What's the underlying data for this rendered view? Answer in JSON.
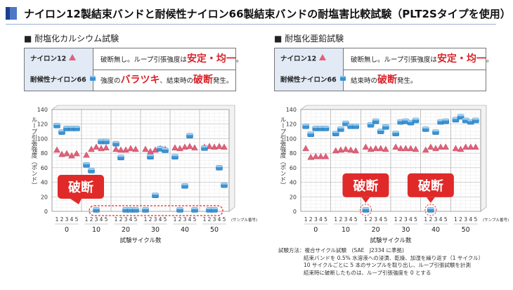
{
  "header": {
    "title": "ナイロン12製結束バンドと耐候性ナイロン66製結束バンドの耐塩害比較試験（PLT2Sタイプを使用）",
    "accent": "#1a3f8f"
  },
  "panels": [
    {
      "title": "■ 耐塩化カルシウム試験",
      "legend": [
        {
          "name": "ナイロン12",
          "symbol": "pink-triangle",
          "desc_parts": [
            "破断無し。ループ引張強度は",
            "安定・均一",
            "。"
          ]
        },
        {
          "name": "耐候性ナイロン66",
          "symbol": "blue-cube",
          "desc_parts": [
            "強度の",
            "バラツキ",
            "、結束時の",
            "破断",
            "発生。"
          ]
        }
      ],
      "break_label": "破断"
    },
    {
      "title": "■ 耐塩化亜鉛試験",
      "legend": [
        {
          "name": "ナイロン12",
          "symbol": "pink-triangle",
          "desc_parts": [
            "破断無し。ループ引張強度は",
            "安定・均一",
            "。"
          ]
        },
        {
          "name": "耐候性ナイロン66",
          "symbol": "blue-cube",
          "desc_parts": [
            "結束時の",
            "破断",
            "発生。"
          ]
        }
      ],
      "break_label": "破断"
    }
  ],
  "chart_data": [
    {
      "type": "scatter",
      "title": "",
      "ylabel": "ループ引張強度（ポンド）",
      "xlabel": "試験サイクル数",
      "ylim": [
        0,
        140
      ],
      "yticks": [
        0,
        20,
        40,
        60,
        80,
        100,
        120,
        140
      ],
      "groups": [
        "0",
        "10",
        "20",
        "30",
        "40",
        "50"
      ],
      "sample_labels": [
        "1",
        "2",
        "3",
        "4",
        "5"
      ],
      "sample_note": "(サンプル番号)",
      "grid": true,
      "series": [
        {
          "name": "ナイロン12",
          "marker": "triangle",
          "color": "#e0607a",
          "values": [
            [
              84,
              78,
              79,
              76,
              79
            ],
            [
              77,
              85,
              88,
              86,
              87
            ],
            [
              85,
              84,
              84,
              86,
              85
            ],
            [
              85,
              82,
              84,
              86,
              85
            ],
            [
              87,
              86,
              88,
              89,
              87
            ],
            [
              88,
              89,
              88,
              89,
              88
            ]
          ]
        },
        {
          "name": "耐候性ナイロン66",
          "marker": "cube",
          "color": "#3a93d4",
          "values": [
            [
              118,
              109,
              114,
              114,
              114
            ],
            [
              64,
              56,
              2,
              96,
              96
            ],
            [
              93,
              74,
              2,
              2,
              2
            ],
            [
              2,
              75,
              22,
              86,
              84
            ],
            [
              75,
              2,
              35,
              104,
              2
            ],
            [
              87,
              2,
              2,
              60,
              36
            ]
          ]
        }
      ],
      "annotation": {
        "text": "破断",
        "note": "values at 0 = broken at binding"
      }
    },
    {
      "type": "scatter",
      "title": "",
      "ylabel": "ループ引張強度（ポンド）",
      "xlabel": "試験サイクル数",
      "ylim": [
        0,
        140
      ],
      "yticks": [
        0,
        20,
        40,
        60,
        80,
        100,
        120,
        140
      ],
      "groups": [
        "0",
        "10",
        "20",
        "30",
        "40",
        "50"
      ],
      "sample_labels": [
        "1",
        "2",
        "3",
        "4",
        "5"
      ],
      "sample_note": "(サンプル番号)",
      "grid": true,
      "series": [
        {
          "name": "ナイロン12",
          "marker": "triangle",
          "color": "#e0607a",
          "values": [
            [
              86,
              74,
              75,
              75,
              75
            ],
            [
              83,
              84,
              85,
              84,
              83
            ],
            [
              88,
              85,
              86,
              86,
              85
            ],
            [
              88,
              86,
              86,
              86,
              85
            ],
            [
              84,
              88,
              86,
              88,
              88
            ],
            [
              86,
              85,
              88,
              88,
              88
            ]
          ]
        },
        {
          "name": "耐候性ナイロン66",
          "marker": "cube",
          "color": "#3a93d4",
          "values": [
            [
              117,
              106,
              114,
              114,
              114
            ],
            [
              107,
              113,
              121,
              117,
              117
            ],
            [
              2,
              119,
              124,
              110,
              116
            ],
            [
              107,
              123,
              124,
              122,
              125
            ],
            [
              113,
              2,
              109,
              123,
              124
            ],
            [
              126,
              130,
              125,
              123,
              125
            ]
          ]
        }
      ],
      "annotation": {
        "text": "破断",
        "note": "values at 0 = broken at binding"
      }
    }
  ],
  "method": {
    "lines": [
      "試験方法：複合サイクル試験　(SAE　J2334 に準拠)",
      "結束バンドを 0.5% 水溶液への浸漬、乾燥、加湿を繰り返す（1 サイクル）",
      "10 サイクルごとに 5 本のサンプルを取り出し、ループ引張試験を計測",
      "結束時に破断したものは、ループ引張強度を 0 とする"
    ]
  },
  "colors": {
    "highlight": "#d9232a",
    "break_box": "#e02a2a",
    "legend_bg": "#e2eaf6"
  }
}
